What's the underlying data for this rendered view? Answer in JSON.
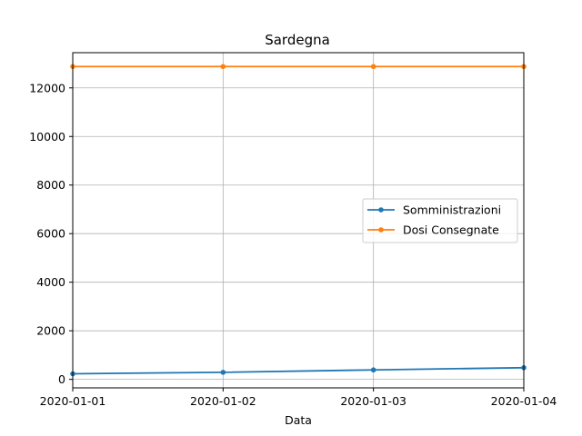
{
  "chart_data": {
    "type": "line",
    "title": "Sardegna",
    "xlabel": "Data",
    "ylabel": "",
    "x": [
      "2020-01-01",
      "2020-01-02",
      "2020-01-03",
      "2020-01-04"
    ],
    "xlim": [
      "2020-01-01",
      "2020-01-04"
    ],
    "ylim": [
      -350,
      13450
    ],
    "yticks": [
      0,
      2000,
      4000,
      6000,
      8000,
      10000,
      12000
    ],
    "grid": true,
    "legend_position": "center-right",
    "series": [
      {
        "name": "Somministrazioni",
        "color": "#1f77b4",
        "values": [
          230,
          290,
          390,
          480
        ]
      },
      {
        "name": "Dosi Consegnate",
        "color": "#ff7f0e",
        "values": [
          12880,
          12880,
          12880,
          12880
        ]
      }
    ]
  }
}
